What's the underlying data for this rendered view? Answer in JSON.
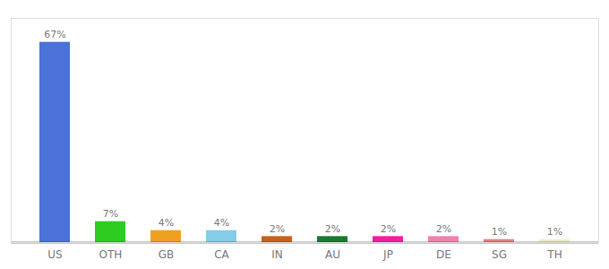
{
  "chart_data": {
    "type": "bar",
    "categories": [
      "US",
      "OTH",
      "GB",
      "CA",
      "IN",
      "AU",
      "JP",
      "DE",
      "SG",
      "TH"
    ],
    "values": [
      67,
      7,
      4,
      4,
      2,
      2,
      2,
      2,
      1,
      1
    ],
    "value_labels": [
      "67%",
      "7%",
      "4%",
      "4%",
      "2%",
      "2%",
      "2%",
      "2%",
      "1%",
      "1%"
    ],
    "colors": [
      "#4a72d9",
      "#2ecc20",
      "#f0a020",
      "#85cce8",
      "#c8621a",
      "#1a7a30",
      "#f020a0",
      "#f080b0",
      "#e08080",
      "#f0ecc8"
    ],
    "ylim": [
      0,
      75
    ],
    "data_labels": true,
    "grid": false,
    "tick_labels": "x"
  }
}
